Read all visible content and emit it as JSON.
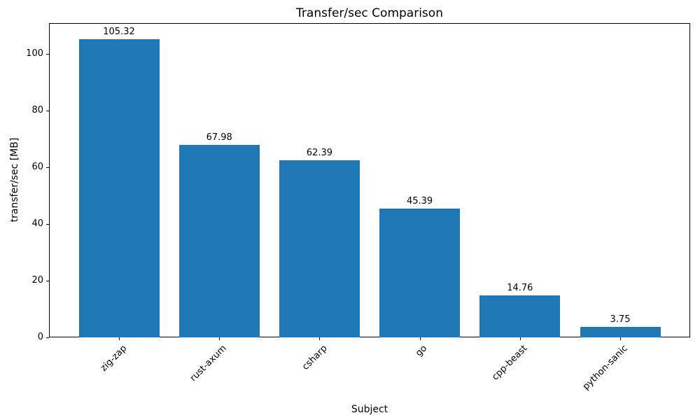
{
  "chart_data": {
    "type": "bar",
    "title": "Transfer/sec Comparison",
    "xlabel": "Subject",
    "ylabel": "transfer/sec [MB]",
    "categories": [
      "zig-zap",
      "rust-axum",
      "csharp",
      "go",
      "cpp-beast",
      "python-sanic"
    ],
    "values": [
      105.32,
      67.98,
      62.39,
      45.39,
      14.76,
      3.75
    ],
    "value_labels": [
      "105.32",
      "67.98",
      "62.39",
      "45.39",
      "14.76",
      "3.75"
    ],
    "yticks": [
      0,
      20,
      40,
      60,
      80,
      100
    ],
    "ylim": [
      0,
      110.9
    ],
    "bar_color": "#1f77b4",
    "text_color": "#000000",
    "grid": false,
    "legend_position": "none",
    "xtick_rotation_deg": 45
  }
}
